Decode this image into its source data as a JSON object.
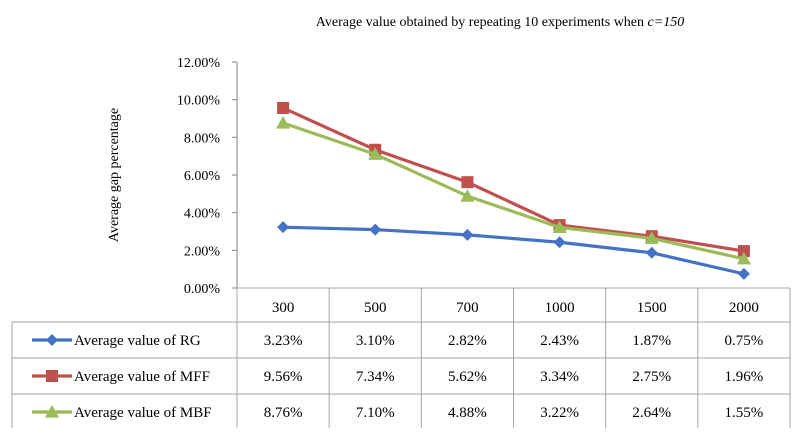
{
  "chart_data": {
    "type": "line",
    "title_prefix": "Average value obtained by repeating 10 experiments when ",
    "title_italic": "c=150",
    "ylabel": "Average gap percentage",
    "xlabel": "",
    "categories": [
      "300",
      "500",
      "700",
      "1000",
      "1500",
      "2000"
    ],
    "ylim": [
      0,
      12
    ],
    "yticks": [
      "0.00%",
      "2.00%",
      "4.00%",
      "6.00%",
      "8.00%",
      "10.00%",
      "12.00%"
    ],
    "grid": false,
    "legend": "data-table",
    "series": [
      {
        "name": "Average value of RG",
        "color": "#4472C4",
        "marker": "diamond",
        "values": [
          3.23,
          3.1,
          2.82,
          2.43,
          1.87,
          0.75
        ],
        "labels": [
          "3.23%",
          "3.10%",
          "2.82%",
          "2.43%",
          "1.87%",
          "0.75%"
        ]
      },
      {
        "name": "Average value of MFF",
        "color": "#C0504D",
        "marker": "square",
        "values": [
          9.56,
          7.34,
          5.62,
          3.34,
          2.75,
          1.96
        ],
        "labels": [
          "9.56%",
          "7.34%",
          "5.62%",
          "3.34%",
          "2.75%",
          "1.96%"
        ]
      },
      {
        "name": "Average value of MBF",
        "color": "#9BBB59",
        "marker": "triangle",
        "values": [
          8.76,
          7.1,
          4.88,
          3.22,
          2.64,
          1.55
        ],
        "labels": [
          "8.76%",
          "7.10%",
          "4.88%",
          "3.22%",
          "2.64%",
          "1.55%"
        ]
      }
    ]
  }
}
